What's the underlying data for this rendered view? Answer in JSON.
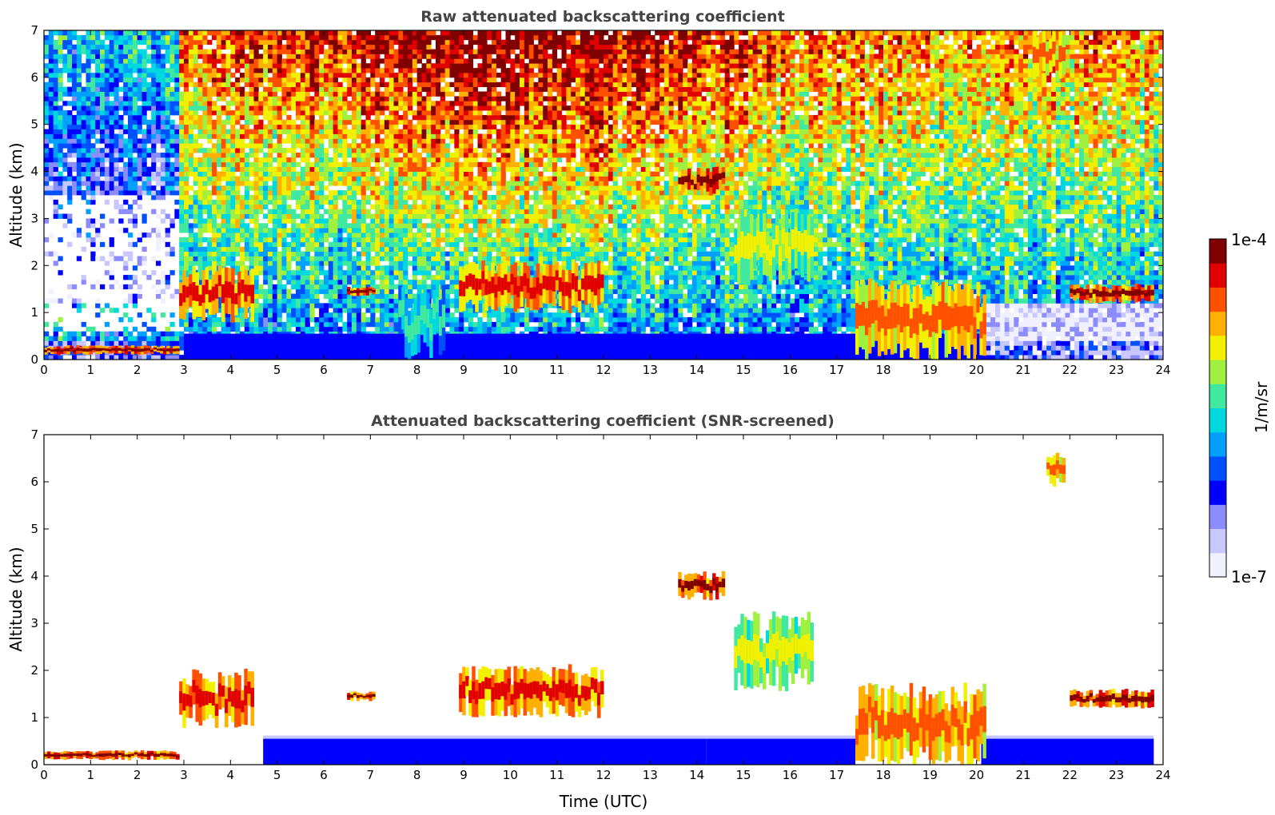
{
  "chart_data": [
    {
      "type": "heatmap",
      "title": "Raw attenuated backscattering coefficient",
      "ylabel": "Altitude (km)",
      "xlabel": "",
      "xlim": [
        0,
        24
      ],
      "ylim": [
        0,
        7
      ],
      "x_ticks": [
        "0",
        "1",
        "2",
        "3",
        "4",
        "5",
        "6",
        "7",
        "8",
        "9",
        "10",
        "11",
        "12",
        "13",
        "14",
        "15",
        "16",
        "17",
        "18",
        "19",
        "20",
        "21",
        "22",
        "23",
        "24"
      ],
      "y_ticks": [
        "0",
        "1",
        "2",
        "3",
        "4",
        "5",
        "6",
        "7"
      ],
      "grid": false,
      "features": [
        {
          "kind": "layer",
          "t": [
            0,
            2.9
          ],
          "alt": [
            0.1,
            0.3
          ],
          "level": 0.95
        },
        {
          "kind": "cloud",
          "t": [
            2.9,
            4.5
          ],
          "alt": [
            0.8,
            2.0
          ],
          "level": 0.9
        },
        {
          "kind": "cloud",
          "t": [
            6.5,
            7.1
          ],
          "alt": [
            1.35,
            1.55
          ],
          "level": 0.95
        },
        {
          "kind": "cloud",
          "t": [
            7.6,
            8.6
          ],
          "alt": [
            0.0,
            1.6
          ],
          "level": 0.55
        },
        {
          "kind": "cloud",
          "t": [
            8.9,
            12.0
          ],
          "alt": [
            1.0,
            2.1
          ],
          "level": 0.9
        },
        {
          "kind": "cloud",
          "t": [
            13.6,
            14.6
          ],
          "alt": [
            3.5,
            4.1
          ],
          "level": 0.95
        },
        {
          "kind": "cloud",
          "t": [
            14.8,
            16.5
          ],
          "alt": [
            1.6,
            3.2
          ],
          "level": 0.7
        },
        {
          "kind": "cloud",
          "t": [
            17.4,
            20.2
          ],
          "alt": [
            0.0,
            1.7
          ],
          "level": 0.85
        },
        {
          "kind": "cloud",
          "t": [
            21.2,
            21.9
          ],
          "alt": [
            5.9,
            7.0
          ],
          "level": 0.8
        },
        {
          "kind": "cloud",
          "t": [
            22.0,
            23.8
          ],
          "alt": [
            1.2,
            1.6
          ],
          "level": 0.95
        }
      ]
    },
    {
      "type": "heatmap",
      "title": "Attenuated backscattering coefficient (SNR-screened)",
      "ylabel": "Altitude (km)",
      "xlabel": "Time (UTC)",
      "xlim": [
        0,
        24
      ],
      "ylim": [
        0,
        7
      ],
      "x_ticks": [
        "0",
        "1",
        "2",
        "3",
        "4",
        "5",
        "6",
        "7",
        "8",
        "9",
        "10",
        "11",
        "12",
        "13",
        "14",
        "15",
        "16",
        "17",
        "18",
        "19",
        "20",
        "21",
        "22",
        "23",
        "24"
      ],
      "y_ticks": [
        "0",
        "1",
        "2",
        "3",
        "4",
        "5",
        "6",
        "7"
      ],
      "grid": false,
      "features": [
        {
          "kind": "layer",
          "t": [
            0,
            2.9
          ],
          "alt": [
            0.1,
            0.3
          ],
          "level": 0.95
        },
        {
          "kind": "cloud",
          "t": [
            2.9,
            4.5
          ],
          "alt": [
            0.8,
            2.0
          ],
          "level": 0.9
        },
        {
          "kind": "cloud",
          "t": [
            6.5,
            7.1
          ],
          "alt": [
            1.35,
            1.55
          ],
          "level": 0.95
        },
        {
          "kind": "cloud",
          "t": [
            8.9,
            12.0
          ],
          "alt": [
            1.0,
            2.1
          ],
          "level": 0.9
        },
        {
          "kind": "cloud",
          "t": [
            13.6,
            14.6
          ],
          "alt": [
            3.5,
            4.1
          ],
          "level": 0.95
        },
        {
          "kind": "cloud",
          "t": [
            14.8,
            16.5
          ],
          "alt": [
            1.6,
            3.2
          ],
          "level": 0.7
        },
        {
          "kind": "cloud",
          "t": [
            17.4,
            20.2
          ],
          "alt": [
            0.0,
            1.7
          ],
          "level": 0.85
        },
        {
          "kind": "cloud",
          "t": [
            21.5,
            21.9
          ],
          "alt": [
            5.9,
            6.6
          ],
          "level": 0.8
        },
        {
          "kind": "cloud",
          "t": [
            22.0,
            23.8
          ],
          "alt": [
            1.2,
            1.6
          ],
          "level": 0.95
        }
      ]
    }
  ],
  "colorbar": {
    "label": "1/m/sr",
    "max_label": "1e-4",
    "min_label": "1e-7",
    "scale": "log",
    "colors": [
      "#f0f0ff",
      "#c8c8ff",
      "#8c8cff",
      "#0000ff",
      "#0050ff",
      "#00a0ff",
      "#00d8e0",
      "#40e8a0",
      "#a0f040",
      "#f0f000",
      "#ffb000",
      "#ff5000",
      "#e00000",
      "#800000"
    ]
  }
}
